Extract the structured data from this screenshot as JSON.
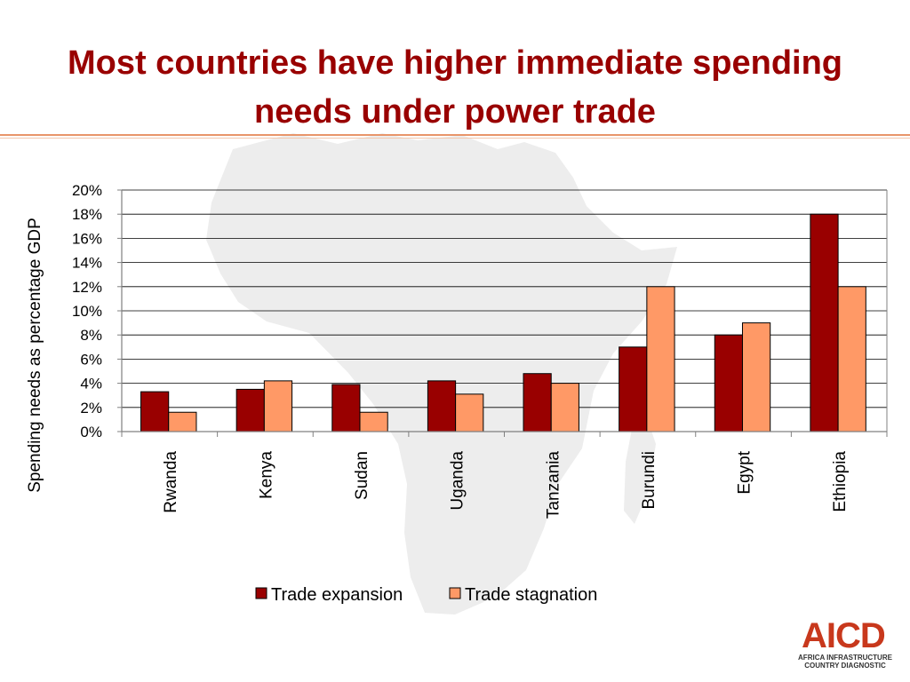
{
  "slide": {
    "title_line1": "Most countries have higher immediate spending",
    "title_line2": "needs under power trade"
  },
  "logo": {
    "word": "AICD",
    "line1": "AFRICA INFRASTRUCTURE",
    "line2": "COUNTRY DIAGNOSTIC"
  },
  "colors": {
    "title": "#990000",
    "trade_expansion": "#990000",
    "trade_stagnation": "#ff9966",
    "watermark": "#ededed"
  },
  "chart_data": {
    "type": "bar",
    "ylabel": "Spending needs as percentage GDP",
    "ylim": [
      0,
      20
    ],
    "yticks": [
      "0%",
      "2%",
      "4%",
      "6%",
      "8%",
      "10%",
      "12%",
      "14%",
      "16%",
      "18%",
      "20%"
    ],
    "grid": true,
    "legend_position": "bottom",
    "categories": [
      "Rwanda",
      "Kenya",
      "Sudan",
      "Uganda",
      "Tanzania",
      "Burundi",
      "Egypt",
      "Ethiopia"
    ],
    "series": [
      {
        "name": "Trade expansion",
        "values": [
          3.3,
          3.5,
          3.9,
          4.2,
          4.8,
          7.0,
          8.0,
          18.0
        ]
      },
      {
        "name": "Trade stagnation",
        "values": [
          1.6,
          4.2,
          1.6,
          3.1,
          4.0,
          12.0,
          9.0,
          12.0
        ]
      }
    ]
  }
}
